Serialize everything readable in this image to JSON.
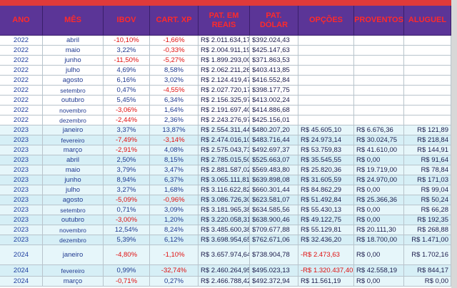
{
  "table": {
    "header": [
      "ANO",
      "MÊS",
      "IBOV",
      "CART. XP",
      "PAT. EM REAIS",
      "PAT. DÓLAR",
      "OPÇÕES",
      "PROVENTOS",
      "ALUGUEL"
    ],
    "rows": [
      [
        "2022",
        "abril",
        "-10,10%",
        "-1,66%",
        "R$ 2.011.634,17",
        "$392.024,43",
        "",
        "",
        ""
      ],
      [
        "2022",
        "maio",
        "3,22%",
        "-0,33%",
        "R$ 2.004.911,19",
        "$425.147,63",
        "",
        "",
        ""
      ],
      [
        "2022",
        "junho",
        "-11,50%",
        "-5,27%",
        "R$ 1.899.293,00",
        "$371.863,53",
        "",
        "",
        ""
      ],
      [
        "2022",
        "julho",
        "4,69%",
        "8,58%",
        "R$ 2.062.211,26",
        "$403.413,85",
        "",
        "",
        ""
      ],
      [
        "2022",
        "agosto",
        "6,16%",
        "3,02%",
        "R$ 2.124.419,47",
        "$416.552,84",
        "",
        "",
        ""
      ],
      [
        "2022",
        "setembro",
        "0,47%",
        "-4,55%",
        "R$ 2.027.720,17",
        "$398.177,75",
        "",
        "",
        ""
      ],
      [
        "2022",
        "outubro",
        "5,45%",
        "6,34%",
        "R$ 2.156.325,97",
        "$413.002,24",
        "",
        "",
        ""
      ],
      [
        "2022",
        "novembro",
        "-3,06%",
        "1,64%",
        "R$ 2.191.697,40",
        "$414.886,68",
        "",
        "",
        ""
      ],
      [
        "2022",
        "dezembro",
        "-2,44%",
        "2,36%",
        "R$ 2.243.276,97",
        "$425.156,01",
        "",
        "",
        ""
      ],
      [
        "2023",
        "janeiro",
        "3,37%",
        "13,87%",
        "R$ 2.554.311,44",
        "$480.207,20",
        "R$ 45.605,10",
        "R$ 6.676,36",
        "R$ 121,89"
      ],
      [
        "2023",
        "fevereiro",
        "-7,49%",
        "-3,14%",
        "R$ 2.474.016,10",
        "$483.716,44",
        "R$ 24.973,14",
        "R$ 30.024,75",
        "R$ 218,84"
      ],
      [
        "2023",
        "março",
        "-2,91%",
        "4,08%",
        "R$ 2.575.043,73",
        "$492.697,37",
        "R$ 53.759,83",
        "R$ 41.610,00",
        "R$ 144,91"
      ],
      [
        "2023",
        "abril",
        "2,50%",
        "8,15%",
        "R$ 2.785.015,50",
        "$525.663,07",
        "R$ 35.545,55",
        "R$ 0,00",
        "R$ 91,64"
      ],
      [
        "2023",
        "maio",
        "3,79%",
        "3,47%",
        "R$ 2.881.587,02",
        "$569.483,80",
        "R$ 25.820,36",
        "R$ 19.719,00",
        "R$ 78,84"
      ],
      [
        "2023",
        "junho",
        "8,94%",
        "6,37%",
        "R$ 3.065.111,81",
        "$639.898,08",
        "R$ 31.605,59",
        "R$ 24.970,00",
        "R$ 171,03"
      ],
      [
        "2023",
        "julho",
        "3,27%",
        "1,68%",
        "R$ 3.116.622,82",
        "$660.301,44",
        "R$ 84.862,29",
        "R$ 0,00",
        "R$ 99,04"
      ],
      [
        "2023",
        "agosto",
        "-5,09%",
        "-0,96%",
        "R$ 3.086.726,30",
        "$623.581,07",
        "R$ 51.492,84",
        "R$ 25.366,36",
        "R$ 50,24"
      ],
      [
        "2023",
        "setembro",
        "0,71%",
        "3,09%",
        "R$ 3.181.965,38",
        "$634.585,56",
        "R$ 55.430,13",
        "R$ 0,00",
        "R$ 66,28"
      ],
      [
        "2023",
        "outubro",
        "-3,00%",
        "1,20%",
        "R$ 3.220.058,31",
        "$638.900,46",
        "R$ 49.122,75",
        "R$ 0,00",
        "R$ 192,35"
      ],
      [
        "2023",
        "novembro",
        "12,54%",
        "8,24%",
        "R$ 3.485.600,38",
        "$709.677,88",
        "R$ 55.129,81",
        "R$ 20.111,30",
        "R$ 268,88"
      ],
      [
        "2023",
        "dezembro",
        "5,39%",
        "6,12%",
        "R$ 3.698.954,65",
        "$762.671,06",
        "R$ 32.436,20",
        "R$ 18.700,00",
        "R$ 1.471,00"
      ],
      [
        "2024",
        "janeiro",
        "-4,80%",
        "-1,10%",
        "R$ 3.657.974,64",
        "$738.904,78",
        "-R$ 2.473,63",
        "R$ 0,00",
        "R$ 1.702,16"
      ],
      [
        "2024",
        "fevereiro",
        "0,99%",
        "-32,74%",
        "R$ 2.460.264,95",
        "$495.023,13",
        "-R$ 1.320.437,40",
        "R$ 42.558,19",
        "R$ 844,17"
      ],
      [
        "2024",
        "março",
        "-0,71%",
        "0,27%",
        "R$ 2.466.788,42",
        "$492.372,94",
        "R$ 11.561,19",
        "R$ 0,00",
        "R$ 0,00"
      ]
    ]
  }
}
